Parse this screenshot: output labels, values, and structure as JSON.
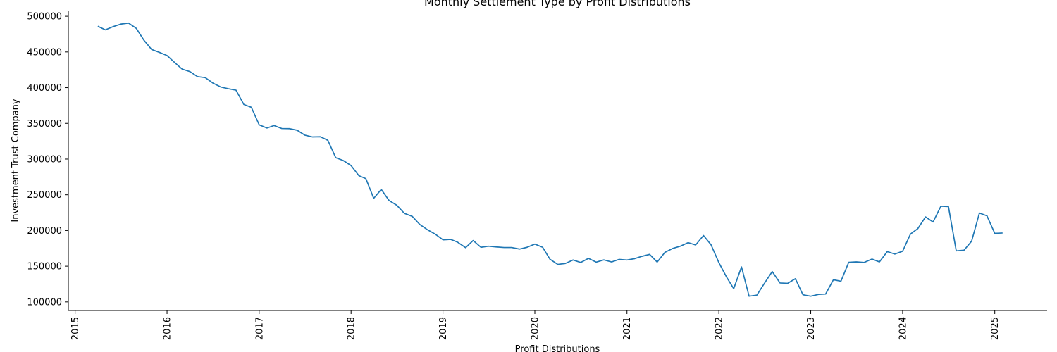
{
  "chart_data": {
    "type": "line",
    "title": "Monthly Settlement Type by Profit Distributions",
    "xlabel": "Profit Distributions",
    "ylabel": "Investment Trust Company",
    "xlim": [
      "2014-12-05",
      "2025-07-28"
    ],
    "ylim": [
      88000,
      508000
    ],
    "grid": false,
    "x_ticks": [
      "2015",
      "2016",
      "2017",
      "2018",
      "2019",
      "2020",
      "2021",
      "2022",
      "2023",
      "2024",
      "2025"
    ],
    "y_ticks": [
      100000,
      150000,
      200000,
      250000,
      300000,
      350000,
      400000,
      450000,
      500000
    ],
    "color": "#1f77b4",
    "series": [
      {
        "x": [
          "2015-04-01",
          "2015-05-01",
          "2015-06-01",
          "2015-07-01",
          "2015-08-01",
          "2015-09-01",
          "2015-10-01",
          "2015-11-01",
          "2015-12-01",
          "2016-01-01",
          "2016-02-01",
          "2016-03-01",
          "2016-04-01",
          "2016-05-01",
          "2016-06-01",
          "2016-07-01",
          "2016-08-01",
          "2016-09-01",
          "2016-10-01",
          "2016-11-01",
          "2016-12-01",
          "2017-01-01",
          "2017-02-01",
          "2017-03-01",
          "2017-04-01",
          "2017-05-01",
          "2017-06-01",
          "2017-07-01",
          "2017-08-01",
          "2017-09-01",
          "2017-10-01",
          "2017-11-01",
          "2017-12-01",
          "2018-01-01",
          "2018-02-01",
          "2018-03-01",
          "2018-04-01",
          "2018-05-01",
          "2018-06-01",
          "2018-07-01",
          "2018-08-01",
          "2018-09-01",
          "2018-10-01",
          "2018-11-01",
          "2018-12-01",
          "2019-01-01",
          "2019-02-01",
          "2019-03-01",
          "2019-04-01",
          "2019-05-01",
          "2019-06-01",
          "2019-07-01",
          "2019-08-01",
          "2019-09-01",
          "2019-10-01",
          "2019-11-01",
          "2019-12-01",
          "2020-01-01",
          "2020-02-01",
          "2020-03-01",
          "2020-04-01",
          "2020-05-01",
          "2020-06-01",
          "2020-07-01",
          "2020-08-01",
          "2020-09-01",
          "2020-10-01",
          "2020-11-01",
          "2020-12-01",
          "2021-01-01",
          "2021-02-01",
          "2021-03-01",
          "2021-04-01",
          "2021-05-01",
          "2021-06-01",
          "2021-07-01",
          "2021-08-01",
          "2021-09-01",
          "2021-10-01",
          "2021-11-01",
          "2021-12-01",
          "2022-01-01",
          "2022-02-01",
          "2022-03-01",
          "2022-04-01",
          "2022-05-01",
          "2022-06-01",
          "2022-07-01",
          "2022-08-01",
          "2022-09-01",
          "2022-10-01",
          "2022-11-01",
          "2022-12-01",
          "2023-01-01",
          "2023-02-01",
          "2023-03-01",
          "2023-04-01",
          "2023-05-01",
          "2023-06-01",
          "2023-07-01",
          "2023-08-01",
          "2023-09-01",
          "2023-10-01",
          "2023-11-01",
          "2023-12-01",
          "2024-01-01",
          "2024-02-01",
          "2024-03-01",
          "2024-04-01",
          "2024-05-01",
          "2024-06-01",
          "2024-07-01",
          "2024-08-01",
          "2024-09-01",
          "2024-10-01",
          "2024-11-01",
          "2024-12-01",
          "2025-01-01",
          "2025-02-01"
        ],
        "values": [
          486000,
          481000,
          485500,
          489000,
          490500,
          483000,
          466500,
          453500,
          449500,
          445000,
          435000,
          426000,
          422500,
          415500,
          414000,
          406500,
          401000,
          398500,
          396500,
          376500,
          372500,
          348000,
          343500,
          347000,
          342800,
          342600,
          340400,
          333600,
          331000,
          331300,
          326300,
          302000,
          298000,
          291000,
          276800,
          272600,
          245000,
          257500,
          242000,
          235500,
          224000,
          219800,
          208500,
          201000,
          195000,
          187000,
          187500,
          183500,
          176000,
          186000,
          176500,
          178000,
          177000,
          176200,
          176200,
          174000,
          176500,
          181000,
          176500,
          159800,
          152500,
          153800,
          158700,
          155200,
          161000,
          155700,
          158800,
          156000,
          159500,
          158700,
          160600,
          163800,
          166500,
          155800,
          169500,
          174800,
          178000,
          183000,
          179800,
          193000,
          180000,
          155000,
          134500,
          118500,
          149000,
          108000,
          109500,
          126000,
          142500,
          126500,
          126000,
          132500,
          110000,
          108000,
          110500,
          111000,
          131000,
          129000,
          155500,
          156000,
          155200,
          160000,
          156000,
          170500,
          167000,
          171000,
          195000,
          202500,
          219000,
          212000,
          234000,
          233500,
          171500,
          172500,
          185000,
          224500,
          220500,
          196000,
          196500
        ]
      }
    ]
  }
}
